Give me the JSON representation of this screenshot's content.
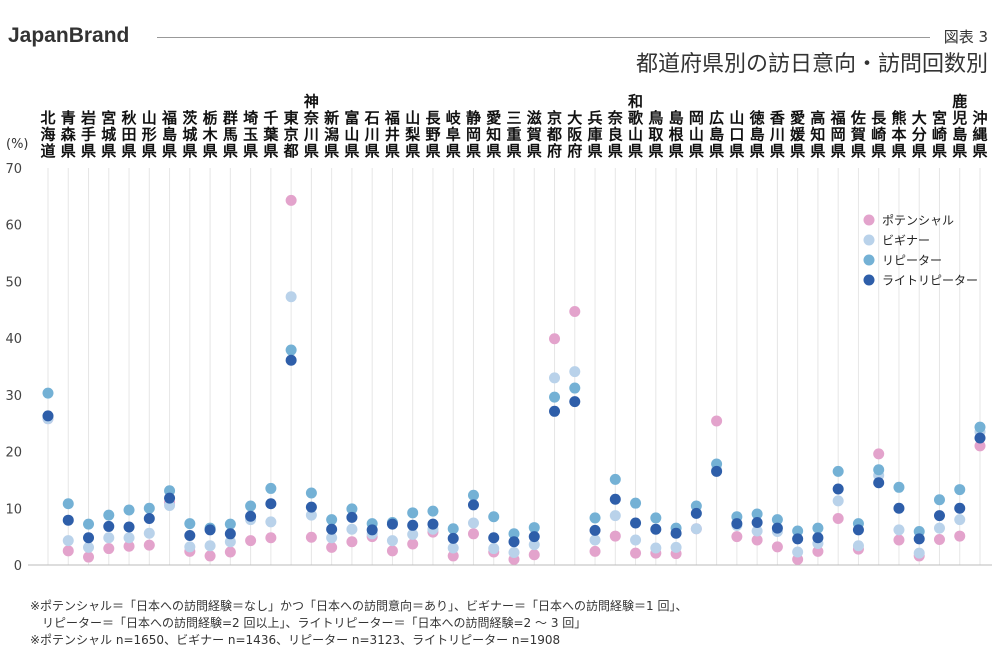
{
  "header": {
    "brand": "JapanBrand",
    "figure_no": "図表 3",
    "title": "都道府県別の訪日意向・訪問回数別"
  },
  "colors": {
    "ポテンシャル": "#e3a3cc",
    "ビギナー": "#b9d2ea",
    "リピーター": "#74b1d5",
    "ライトリピーター": "#2e5ea9"
  },
  "chart_data": {
    "type": "scatter",
    "ylabel": "(%)",
    "ylim": [
      0,
      70
    ],
    "yticks": [
      0,
      10,
      20,
      30,
      40,
      50,
      60,
      70
    ],
    "grid": "vertical lines per category",
    "legend_position": "top-right",
    "categories": [
      "北海道",
      "青森県",
      "岩手県",
      "宮城県",
      "秋田県",
      "山形県",
      "福島県",
      "茨城県",
      "栃木県",
      "群馬県",
      "埼玉県",
      "千葉県",
      "東京都",
      "神奈川県",
      "新潟県",
      "富山県",
      "石川県",
      "福井県",
      "山梨県",
      "長野県",
      "岐阜県",
      "静岡県",
      "愛知県",
      "三重県",
      "滋賀県",
      "京都府",
      "大阪府",
      "兵庫県",
      "奈良県",
      "和歌山県",
      "鳥取県",
      "島根県",
      "岡山県",
      "広島県",
      "山口県",
      "徳島県",
      "香川県",
      "愛媛県",
      "高知県",
      "福岡県",
      "佐賀県",
      "長崎県",
      "熊本県",
      "大分県",
      "宮崎県",
      "鹿児島県",
      "沖縄県"
    ],
    "series": [
      {
        "name": "ポテンシャル",
        "values": [
          25.8,
          2.5,
          1.4,
          2.9,
          3.3,
          3.5,
          11.0,
          2.4,
          1.6,
          2.3,
          4.3,
          4.8,
          64.3,
          4.9,
          3.1,
          4.1,
          5.0,
          2.5,
          3.7,
          5.8,
          1.6,
          5.5,
          2.3,
          1.0,
          1.8,
          39.9,
          44.7,
          2.4,
          5.1,
          2.1,
          2.1,
          2.0,
          6.4,
          25.4,
          5.0,
          4.4,
          3.2,
          1.0,
          2.4,
          8.2,
          2.8,
          19.6,
          4.4,
          1.6,
          4.5,
          5.1,
          21.0
        ]
      },
      {
        "name": "ビギナー",
        "values": [
          25.8,
          4.3,
          3.1,
          4.8,
          4.8,
          5.6,
          10.5,
          3.2,
          3.4,
          4.1,
          8.0,
          7.6,
          47.3,
          8.8,
          4.8,
          6.3,
          5.5,
          4.3,
          5.4,
          6.3,
          3.0,
          7.4,
          2.9,
          2.2,
          3.6,
          33.0,
          34.1,
          4.4,
          8.7,
          4.4,
          3.0,
          3.1,
          6.4,
          16.8,
          7.0,
          6.0,
          5.9,
          2.3,
          3.8,
          11.3,
          3.4,
          15.8,
          6.2,
          2.1,
          6.5,
          8.0,
          23.5
        ]
      },
      {
        "name": "リピーター",
        "values": [
          30.3,
          10.8,
          7.2,
          8.8,
          9.7,
          10.0,
          13.1,
          7.3,
          6.5,
          7.2,
          10.4,
          13.5,
          37.9,
          12.7,
          8.0,
          9.9,
          7.3,
          7.5,
          9.2,
          9.5,
          6.4,
          12.3,
          8.5,
          5.5,
          6.6,
          29.6,
          31.2,
          8.3,
          15.1,
          10.9,
          8.3,
          6.5,
          10.4,
          17.8,
          8.5,
          9.0,
          8.0,
          6.0,
          6.5,
          16.5,
          7.3,
          16.8,
          13.7,
          5.9,
          11.5,
          13.3,
          24.3
        ]
      },
      {
        "name": "ライトリピーター",
        "values": [
          26.3,
          7.9,
          4.8,
          6.8,
          6.7,
          8.2,
          11.8,
          5.2,
          6.2,
          5.5,
          8.6,
          10.8,
          36.1,
          10.2,
          6.3,
          8.4,
          6.2,
          7.2,
          7.0,
          7.2,
          4.7,
          10.6,
          4.8,
          4.1,
          5.0,
          27.1,
          28.8,
          6.1,
          11.6,
          7.4,
          6.3,
          5.6,
          9.1,
          16.5,
          7.3,
          7.5,
          6.5,
          4.6,
          4.8,
          13.4,
          6.2,
          14.5,
          10.0,
          4.6,
          8.7,
          10.0,
          22.4
        ]
      }
    ]
  },
  "notes": [
    "※ポテンシャル＝「日本への訪問経験＝なし」かつ「日本への訪問意向＝あり」、ビギナー＝「日本への訪問経験＝1 回」、",
    "　リピーター＝「日本への訪問経験=2 回以上」、ライトリピーター＝「日本への訪問経験=2 〜 3 回」",
    "※ポテンシャル n=1650、ビギナー n=1436、リピーター n=3123、ライトリピーター n=1908"
  ]
}
